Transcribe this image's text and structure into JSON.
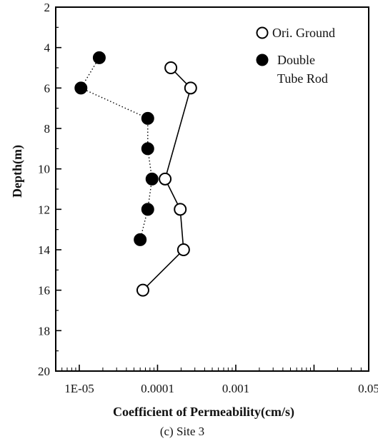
{
  "chart_data": {
    "type": "scatter",
    "title": "",
    "caption": "(c) Site 3",
    "xlabel": "Coefficient of Permeability(cm/s)",
    "ylabel": "Depth(m)",
    "xscale": "log",
    "xlim": [
      5e-06,
      0.05
    ],
    "ylim": [
      2,
      20
    ],
    "y_inverted": true,
    "grid": false,
    "legend_position": "top-right",
    "x_ticks": [
      {
        "value": 1e-05,
        "label": "1E-05"
      },
      {
        "value": 0.0001,
        "label": "0.0001"
      },
      {
        "value": 0.001,
        "label": "0.001"
      },
      {
        "value": 0.05,
        "label": "0.05"
      }
    ],
    "y_ticks": [
      2,
      4,
      6,
      8,
      10,
      12,
      14,
      16,
      18,
      20
    ],
    "series": [
      {
        "name": "Ori. Ground",
        "marker": "open-circle",
        "line": "solid",
        "color": "#000000",
        "points": [
          {
            "x": 0.000148,
            "y": 5
          },
          {
            "x": 0.000265,
            "y": 6
          },
          {
            "x": 0.000125,
            "y": 10.5
          },
          {
            "x": 0.000195,
            "y": 12
          },
          {
            "x": 0.000215,
            "y": 14
          },
          {
            "x": 6.5e-05,
            "y": 16
          }
        ]
      },
      {
        "name": "Double Tube Rod",
        "marker": "filled-circle",
        "line": "dotted",
        "color": "#000000",
        "points": [
          {
            "x": 1.8e-05,
            "y": 4.5
          },
          {
            "x": 1.05e-05,
            "y": 6
          },
          {
            "x": 7.5e-05,
            "y": 7.5
          },
          {
            "x": 7.5e-05,
            "y": 9
          },
          {
            "x": 8.5e-05,
            "y": 10.5
          },
          {
            "x": 7.5e-05,
            "y": 12
          },
          {
            "x": 6e-05,
            "y": 13.5
          }
        ]
      }
    ],
    "legend": [
      {
        "label": "Ori. Ground",
        "marker": "open-circle"
      },
      {
        "label_lines": [
          "Double",
          "Tube Rod"
        ],
        "marker": "filled-circle"
      }
    ]
  }
}
